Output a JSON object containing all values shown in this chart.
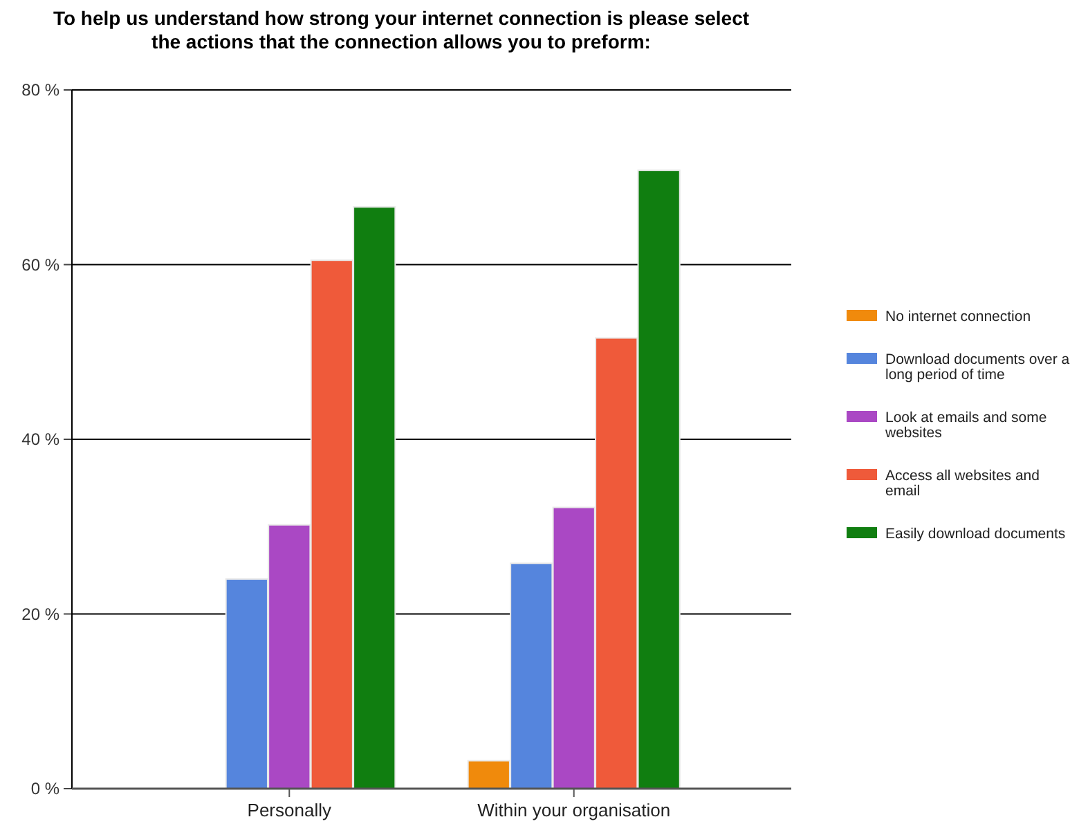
{
  "chart_data": {
    "type": "bar",
    "title": "To help us understand how strong your internet connection is please select the actions that the connection allows you to preform:",
    "categories": [
      "Personally",
      "Within your organisation"
    ],
    "series": [
      {
        "name": "No internet connection",
        "color": "#f08a0c",
        "values": [
          0,
          3.2
        ]
      },
      {
        "name": "Download documents over a long period of time",
        "color": "#5585dd",
        "values": [
          24.0,
          25.8
        ]
      },
      {
        "name": "Look at emails and some websites",
        "color": "#aa48c4",
        "values": [
          30.2,
          32.2
        ]
      },
      {
        "name": "Access all websites and email",
        "color": "#ef5a3a",
        "values": [
          60.5,
          51.6
        ]
      },
      {
        "name": "Easily download documents",
        "color": "#107e10",
        "values": [
          66.6,
          70.8
        ]
      }
    ],
    "ylim": [
      0,
      80
    ],
    "yticks": [
      {
        "value": 0,
        "label": "0 %"
      },
      {
        "value": 20,
        "label": "20 %"
      },
      {
        "value": 40,
        "label": "40 %"
      },
      {
        "value": 60,
        "label": "60 %"
      },
      {
        "value": 80,
        "label": "80 %"
      }
    ],
    "grid": "y",
    "legend": "right"
  }
}
